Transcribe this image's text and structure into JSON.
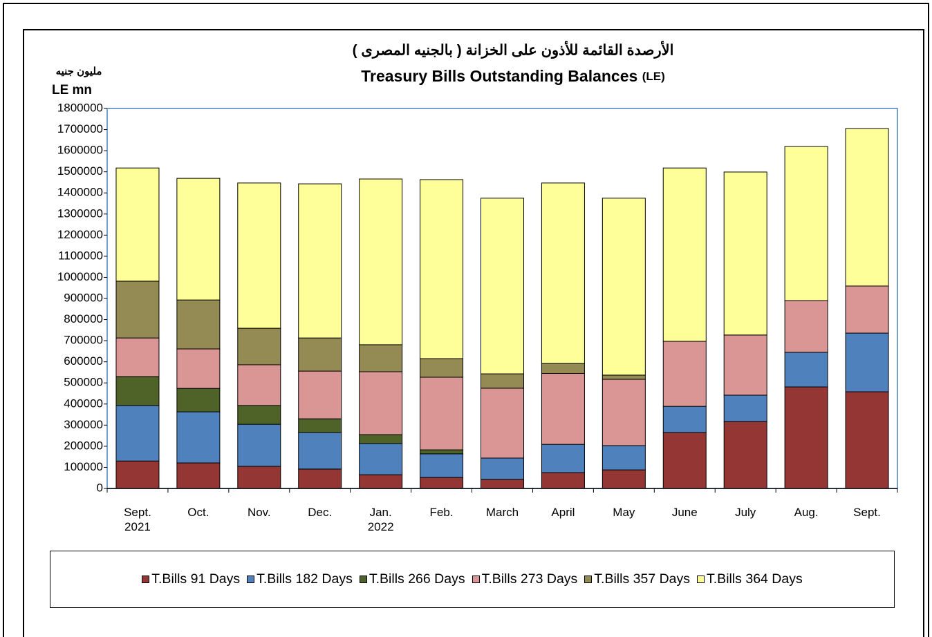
{
  "chart_data": {
    "type": "stacked_bar",
    "title_ar": "الأرصدة القائمة للأذون على الخزانة ( بالجنيه المصرى )",
    "title": "Treasury Bills Outstanding Balances",
    "title_unit": "(LE)",
    "y_label_ar": "مليون جنيه",
    "y_label": "LE mn",
    "categories": [
      "Sept.\n2021",
      "Oct.",
      "Nov.",
      "Dec.",
      "Jan.\n2022",
      "Feb.",
      "March",
      "April",
      "May",
      "June",
      "July",
      "Aug.",
      "Sept."
    ],
    "series": [
      {
        "name": "T.Bills 91 Days",
        "color": "#943634",
        "values": [
          130000,
          121000,
          105000,
          92000,
          65000,
          52000,
          43000,
          75000,
          88000,
          265000,
          317000,
          481000,
          458000
        ]
      },
      {
        "name": "T.Bills 182 Days",
        "color": "#4f81bd",
        "values": [
          263000,
          242000,
          199000,
          173000,
          148000,
          112000,
          101000,
          134000,
          115000,
          124000,
          125000,
          164000,
          278000
        ]
      },
      {
        "name": "T.Bills 266 Days",
        "color": "#4f6228",
        "values": [
          137000,
          111000,
          89000,
          65000,
          42000,
          19000,
          0,
          0,
          0,
          0,
          0,
          0,
          0
        ]
      },
      {
        "name": "T.Bills 273 Days",
        "color": "#da9694",
        "values": [
          183000,
          187000,
          193000,
          226000,
          298000,
          344000,
          331000,
          336000,
          314000,
          308000,
          285000,
          245000,
          223000
        ]
      },
      {
        "name": "T.Bills 357 Days",
        "color": "#948a54",
        "values": [
          269000,
          232000,
          173000,
          157000,
          128000,
          88000,
          68000,
          47000,
          20000,
          0,
          0,
          0,
          0
        ]
      },
      {
        "name": "T.Bills 364 Days",
        "color": "#ffff99",
        "values": [
          536000,
          576000,
          688000,
          730000,
          785000,
          848000,
          832000,
          855000,
          838000,
          821000,
          772000,
          730000,
          746000
        ]
      }
    ],
    "ylim": [
      0,
      1800000
    ],
    "yticks": [
      0,
      100000,
      200000,
      300000,
      400000,
      500000,
      600000,
      700000,
      800000,
      900000,
      1000000,
      1100000,
      1200000,
      1300000,
      1400000,
      1500000,
      1600000,
      1700000,
      1800000
    ],
    "legend": "bottom"
  }
}
